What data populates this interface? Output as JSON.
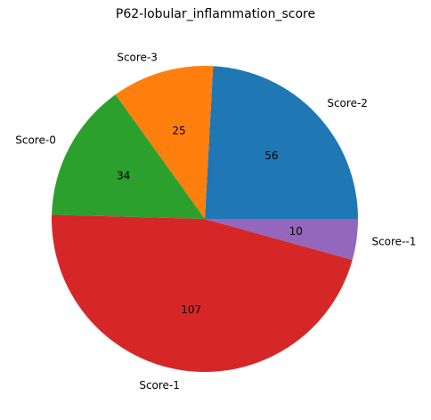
{
  "chart_data": {
    "type": "pie",
    "title": "P62-lobular_inflammation_score",
    "slices": [
      {
        "label": "Score-2",
        "value": 56,
        "color": "#1f77b4"
      },
      {
        "label": "Score-3",
        "value": 25,
        "color": "#ff7f0e"
      },
      {
        "label": "Score-0",
        "value": 34,
        "color": "#2ca02c"
      },
      {
        "label": "Score-1",
        "value": 107,
        "color": "#d62728"
      },
      {
        "label": "Score--1",
        "value": 10,
        "color": "#9467bd"
      }
    ],
    "start_angle_deg": 0,
    "direction": "counterclockwise"
  }
}
